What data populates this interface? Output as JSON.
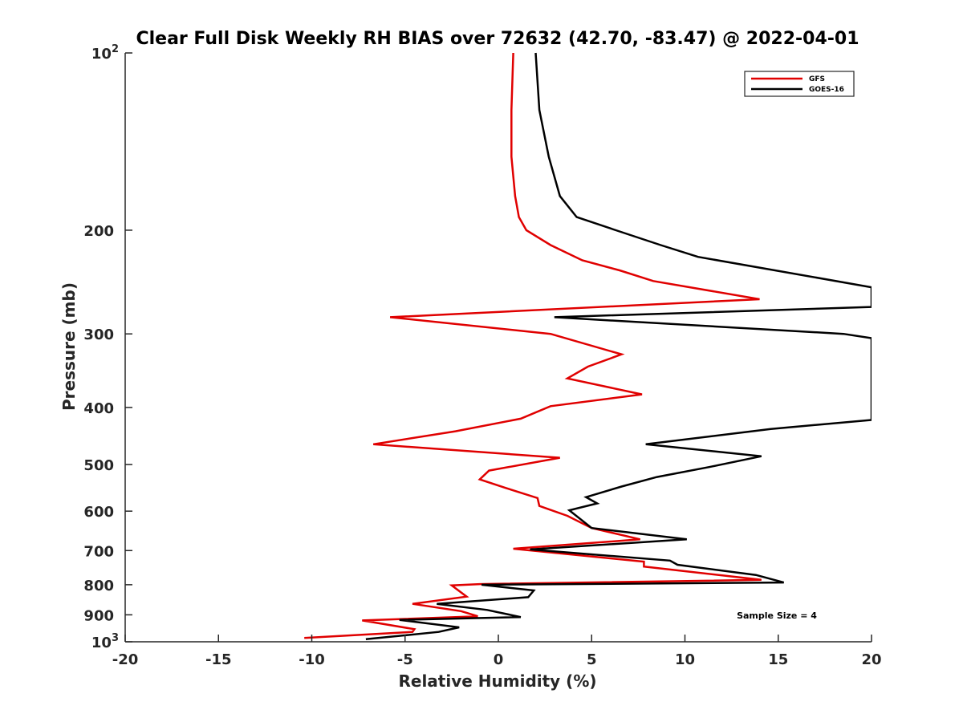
{
  "chart_data": {
    "type": "line",
    "title": "Clear Full Disk Weekly RH BIAS over 72632 (42.70, -83.47) @ 2022-04-01",
    "xlabel": "Relative Humidity (%)",
    "ylabel": "Pressure (mb)",
    "xlim": [
      -20,
      20
    ],
    "ylim": [
      100,
      1000
    ],
    "y_scale": "log",
    "y_reversed": true,
    "x_ticks": [
      "-20",
      "-15",
      "-10",
      "-5",
      "0",
      "5",
      "10",
      "15",
      "20"
    ],
    "y_ticks": [
      {
        "value": 100,
        "base": "10",
        "exp": "2"
      },
      {
        "value": 200,
        "label": "200"
      },
      {
        "value": 300,
        "label": "300"
      },
      {
        "value": 400,
        "label": "400"
      },
      {
        "value": 500,
        "label": "500"
      },
      {
        "value": 600,
        "label": "600"
      },
      {
        "value": 700,
        "label": "700"
      },
      {
        "value": 800,
        "label": "800"
      },
      {
        "value": 900,
        "label": "900"
      },
      {
        "value": 1000,
        "base": "10",
        "exp": "3"
      }
    ],
    "legend_position": "top-right",
    "annotation": "Sample Size = 4",
    "series": [
      {
        "name": "GFS",
        "color": "#e00000",
        "points": [
          [
            0.8,
            100
          ],
          [
            0.7,
            125
          ],
          [
            0.7,
            150
          ],
          [
            0.9,
            175
          ],
          [
            1.1,
            190
          ],
          [
            1.5,
            200
          ],
          [
            2.8,
            212
          ],
          [
            4.5,
            225
          ],
          [
            6.5,
            234
          ],
          [
            8.3,
            244
          ],
          [
            14.0,
            262
          ],
          [
            -5.8,
            281
          ],
          [
            2.8,
            300
          ],
          [
            6.6,
            325
          ],
          [
            4.8,
            341
          ],
          [
            3.7,
            357
          ],
          [
            7.7,
            380
          ],
          [
            2.8,
            398
          ],
          [
            1.2,
            418
          ],
          [
            -2.3,
            439
          ],
          [
            -6.7,
            462
          ],
          [
            3.3,
            487
          ],
          [
            -0.5,
            512
          ],
          [
            -1.0,
            530
          ],
          [
            0.4,
            548
          ],
          [
            2.1,
            570
          ],
          [
            2.2,
            588
          ],
          [
            3.7,
            611
          ],
          [
            5.0,
            641
          ],
          [
            7.6,
            670
          ],
          [
            0.8,
            695
          ],
          [
            7.8,
            731
          ],
          [
            7.8,
            745
          ],
          [
            14.1,
            785
          ],
          [
            -1.0,
            798
          ],
          [
            -2.5,
            802
          ],
          [
            -1.7,
            838
          ],
          [
            -4.6,
            862
          ],
          [
            -2.0,
            887
          ],
          [
            -1.1,
            905
          ],
          [
            -7.3,
            920
          ],
          [
            -4.5,
            952
          ],
          [
            -4.6,
            962
          ],
          [
            -10.4,
            985
          ]
        ]
      },
      {
        "name": "GOES-16",
        "color": "#000000",
        "points": [
          [
            2.0,
            100
          ],
          [
            2.2,
            125
          ],
          [
            2.7,
            150
          ],
          [
            3.3,
            175
          ],
          [
            4.2,
            190
          ],
          [
            6.3,
            200
          ],
          [
            8.7,
            212
          ],
          [
            10.7,
            222
          ],
          [
            20.0,
            250
          ],
          [
            20.0,
            270
          ],
          [
            3.0,
            281
          ],
          [
            18.5,
            300
          ],
          [
            20.0,
            305
          ],
          [
            20.0,
            420
          ],
          [
            14.6,
            435
          ],
          [
            7.9,
            462
          ],
          [
            14.1,
            484
          ],
          [
            11.3,
            505
          ],
          [
            8.5,
            525
          ],
          [
            6.6,
            545
          ],
          [
            4.7,
            568
          ],
          [
            5.3,
            582
          ],
          [
            3.8,
            598
          ],
          [
            5.0,
            641
          ],
          [
            10.1,
            670
          ],
          [
            1.7,
            697
          ],
          [
            9.2,
            728
          ],
          [
            9.6,
            740
          ],
          [
            13.8,
            770
          ],
          [
            15.3,
            793
          ],
          [
            -0.9,
            800
          ],
          [
            1.9,
            818
          ],
          [
            1.6,
            840
          ],
          [
            -3.3,
            862
          ],
          [
            -0.6,
            883
          ],
          [
            1.2,
            908
          ],
          [
            -5.3,
            918
          ],
          [
            -2.1,
            945
          ],
          [
            -3.2,
            962
          ],
          [
            -7.1,
            990
          ]
        ]
      }
    ]
  }
}
